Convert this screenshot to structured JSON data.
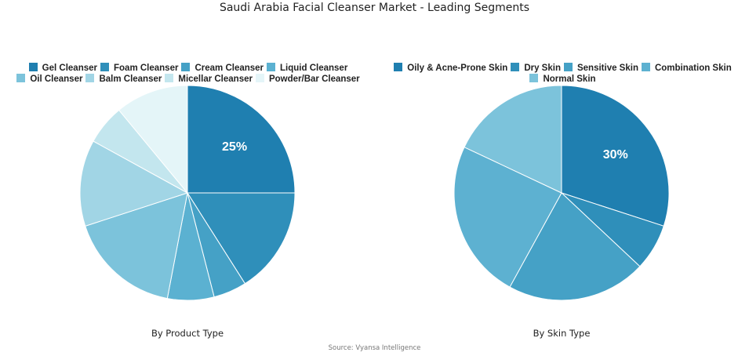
{
  "title": "Saudi Arabia Facial Cleanser Market - Leading Segments",
  "source": "Source: Vyansa Intelligence",
  "chart_data": [
    {
      "type": "pie",
      "title": "By Product Type",
      "categories": [
        "Gel Cleanser",
        "Foam Cleanser",
        "Cream Cleanser",
        "Liquid Cleanser",
        "Oil Cleanser",
        "Balm Cleanser",
        "Micellar Cleanser",
        "Powder/Bar Cleanser"
      ],
      "values": [
        25,
        16,
        5,
        7,
        17,
        13,
        6,
        11
      ],
      "colors": [
        "#1f7fb0",
        "#2f8fba",
        "#45a1c6",
        "#5bb1d1",
        "#7cc3db",
        "#a1d5e5",
        "#c3e6ee",
        "#e4f5f8"
      ],
      "data_labels": [
        "25%"
      ],
      "legend_position": "top"
    },
    {
      "type": "pie",
      "title": "By Skin Type",
      "categories": [
        "Oily & Acne-Prone Skin",
        "Dry Skin",
        "Sensitive Skin",
        "Combination Skin",
        "Normal Skin"
      ],
      "values": [
        30,
        7,
        21,
        24,
        18
      ],
      "colors": [
        "#1f7fb0",
        "#2f8fba",
        "#45a1c6",
        "#5db1d1",
        "#7cc3db"
      ],
      "data_labels": [
        "30%"
      ],
      "legend_position": "top"
    }
  ]
}
